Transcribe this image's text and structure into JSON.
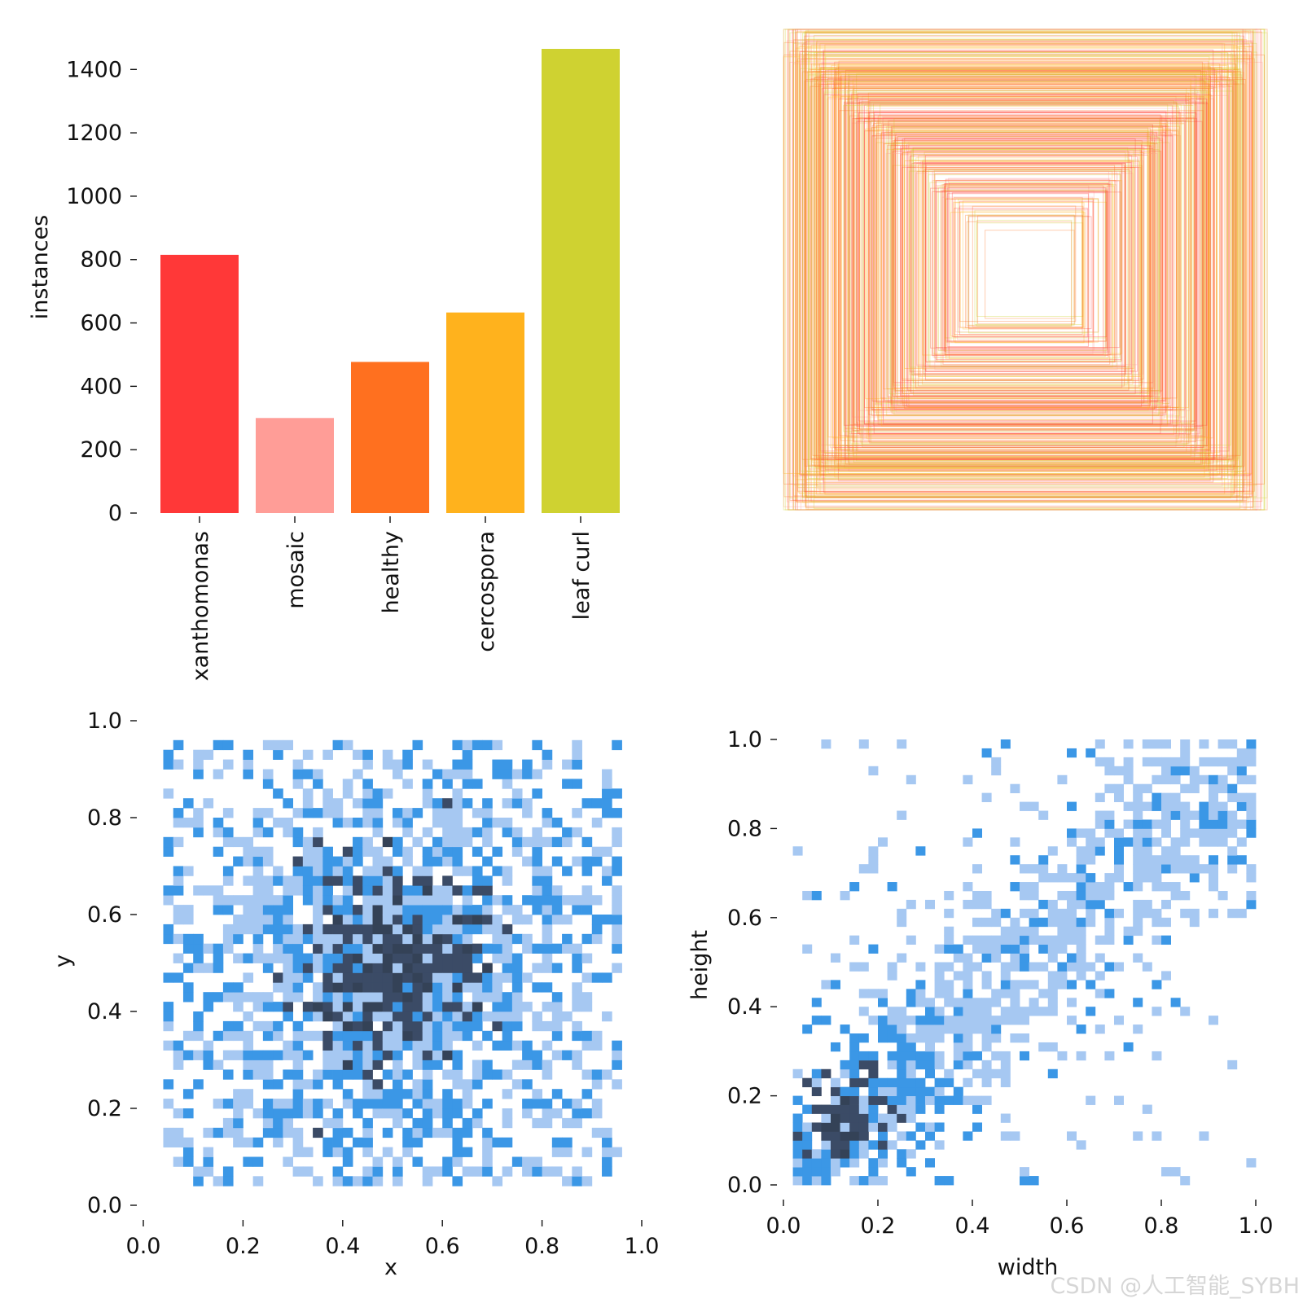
{
  "chart_data": [
    {
      "type": "bar",
      "title": "",
      "xlabel": "",
      "ylabel": "instances",
      "categories": [
        "xanthomonas",
        "mosaic",
        "healthy",
        "cercospora",
        "leaf curl"
      ],
      "values": [
        815,
        300,
        477,
        633,
        1465
      ],
      "colors": [
        "#ff3838",
        "#ff9d97",
        "#ff701f",
        "#ffb21d",
        "#cfd231"
      ],
      "ylim": [
        0,
        1465
      ],
      "yticks": [
        "0",
        "200",
        "400",
        "600",
        "800",
        "1000",
        "1200",
        "1400"
      ]
    },
    {
      "type": "boxes",
      "title": "",
      "description_colors": [
        "#ff3838",
        "#ff9d97",
        "#ff701f",
        "#ffb21d",
        "#cfd231"
      ]
    },
    {
      "type": "heatmap",
      "xlabel": "x",
      "ylabel": "y",
      "xlim": [
        0.0,
        1.0
      ],
      "ylim": [
        0.0,
        1.0
      ],
      "xticks": [
        "0.0",
        "0.2",
        "0.4",
        "0.6",
        "0.8",
        "1.0"
      ],
      "yticks": [
        "0.0",
        "0.2",
        "0.4",
        "0.6",
        "0.8",
        "1.0"
      ],
      "bins": 50,
      "center": [
        0.5,
        0.5
      ],
      "spread": [
        0.22,
        0.22
      ]
    },
    {
      "type": "heatmap",
      "xlabel": "width",
      "ylabel": "height",
      "xlim": [
        0.0,
        1.0
      ],
      "ylim": [
        0.0,
        1.0
      ],
      "xticks": [
        "0.0",
        "0.2",
        "0.4",
        "0.6",
        "0.8",
        "1.0"
      ],
      "yticks": [
        "0.0",
        "0.2",
        "0.4",
        "0.6",
        "0.8",
        "1.0"
      ],
      "bins": 50,
      "center": [
        0.15,
        0.15
      ]
    }
  ],
  "watermark": "CSDN @人工智能_SYBH",
  "palette": {
    "light": "#a6c8f2",
    "mid": "#3b97e6",
    "dark": "#3b4b66",
    "darkest": "#344257"
  }
}
